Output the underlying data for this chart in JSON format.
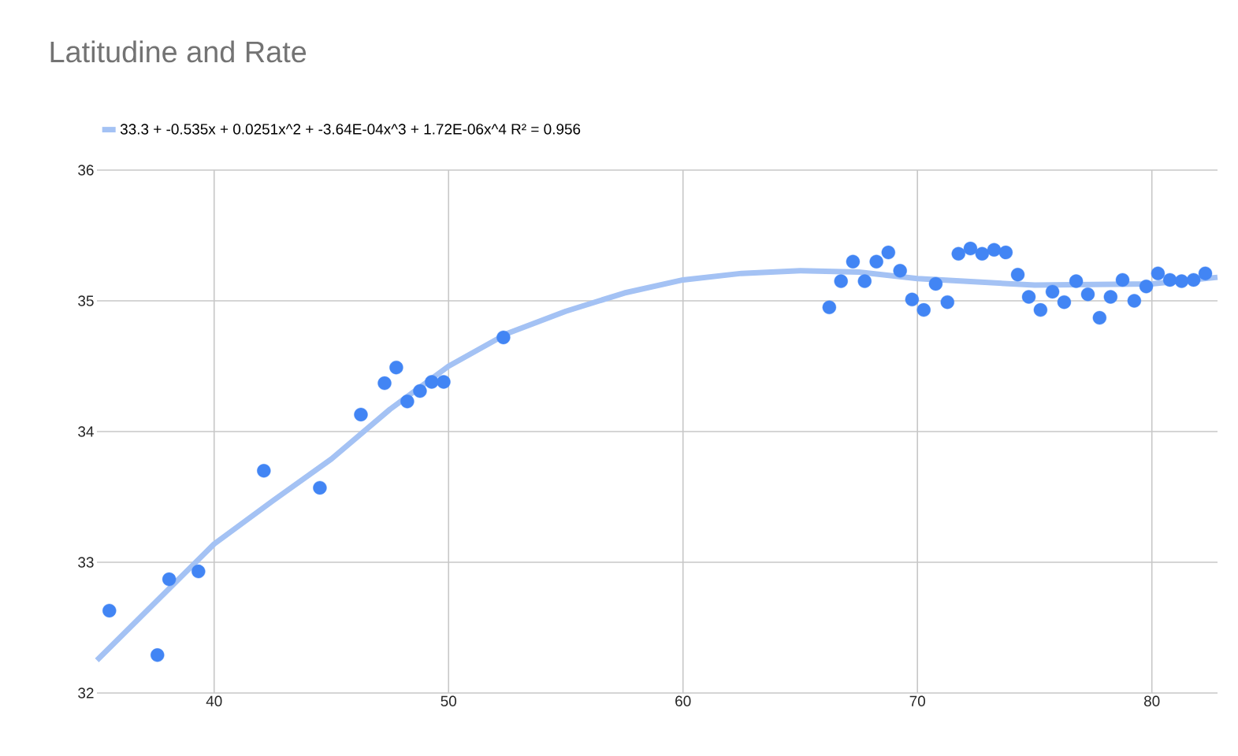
{
  "chart_data": {
    "type": "scatter",
    "title": "Latitudine and Rate",
    "xlim": [
      35,
      82.8
    ],
    "ylim": [
      32,
      36
    ],
    "xticks": [
      40,
      50,
      60,
      70,
      80
    ],
    "yticks": [
      32,
      33,
      34,
      35,
      36
    ],
    "grid": true,
    "legend": "top left",
    "series": [
      {
        "color": "#4285f4",
        "marker": "circle",
        "x": [
          35.53,
          37.58,
          38.08,
          39.33,
          42.12,
          44.51,
          46.26,
          47.27,
          47.77,
          48.24,
          48.78,
          49.28,
          49.79,
          52.34,
          66.24,
          66.74,
          67.25,
          67.75,
          68.25,
          68.76,
          69.26,
          69.77,
          70.27,
          70.78,
          71.28,
          71.75,
          72.26,
          72.76,
          73.27,
          73.77,
          74.28,
          74.75,
          75.25,
          75.76,
          76.26,
          76.77,
          77.27,
          77.77,
          78.24,
          78.75,
          79.25,
          79.76,
          80.26,
          80.77,
          81.27,
          81.78,
          82.28
        ],
        "values": [
          32.63,
          32.29,
          32.87,
          32.93,
          33.7,
          33.57,
          34.13,
          34.37,
          34.49,
          34.23,
          34.31,
          34.38,
          34.38,
          34.72,
          34.95,
          35.15,
          35.3,
          35.15,
          35.3,
          35.37,
          35.23,
          35.01,
          34.93,
          35.13,
          34.99,
          35.36,
          35.4,
          35.36,
          35.39,
          35.37,
          35.2,
          35.03,
          34.93,
          35.07,
          34.99,
          35.15,
          35.05,
          34.87,
          35.03,
          35.16,
          35,
          35.11,
          35.21,
          35.16,
          35.15,
          35.16,
          35.21
        ]
      },
      {
        "type": "line",
        "name": "33.3 + -0.535x + 0.0251x^2 + -3.64E-04x^3 + 1.72E-06x^4 R² = 0.956",
        "color": "#a4c2f4",
        "marker": "none",
        "x": [
          35,
          40,
          42.5,
          45,
          47.5,
          50,
          52.5,
          55,
          57.5,
          60,
          62.5,
          65,
          67.5,
          70,
          75,
          80,
          82.8
        ],
        "values": [
          32.25,
          33.14,
          33.47,
          33.79,
          34.17,
          34.5,
          34.75,
          34.92,
          35.06,
          35.16,
          35.21,
          35.23,
          35.22,
          35.17,
          35.12,
          35.13,
          35.18
        ]
      }
    ]
  }
}
